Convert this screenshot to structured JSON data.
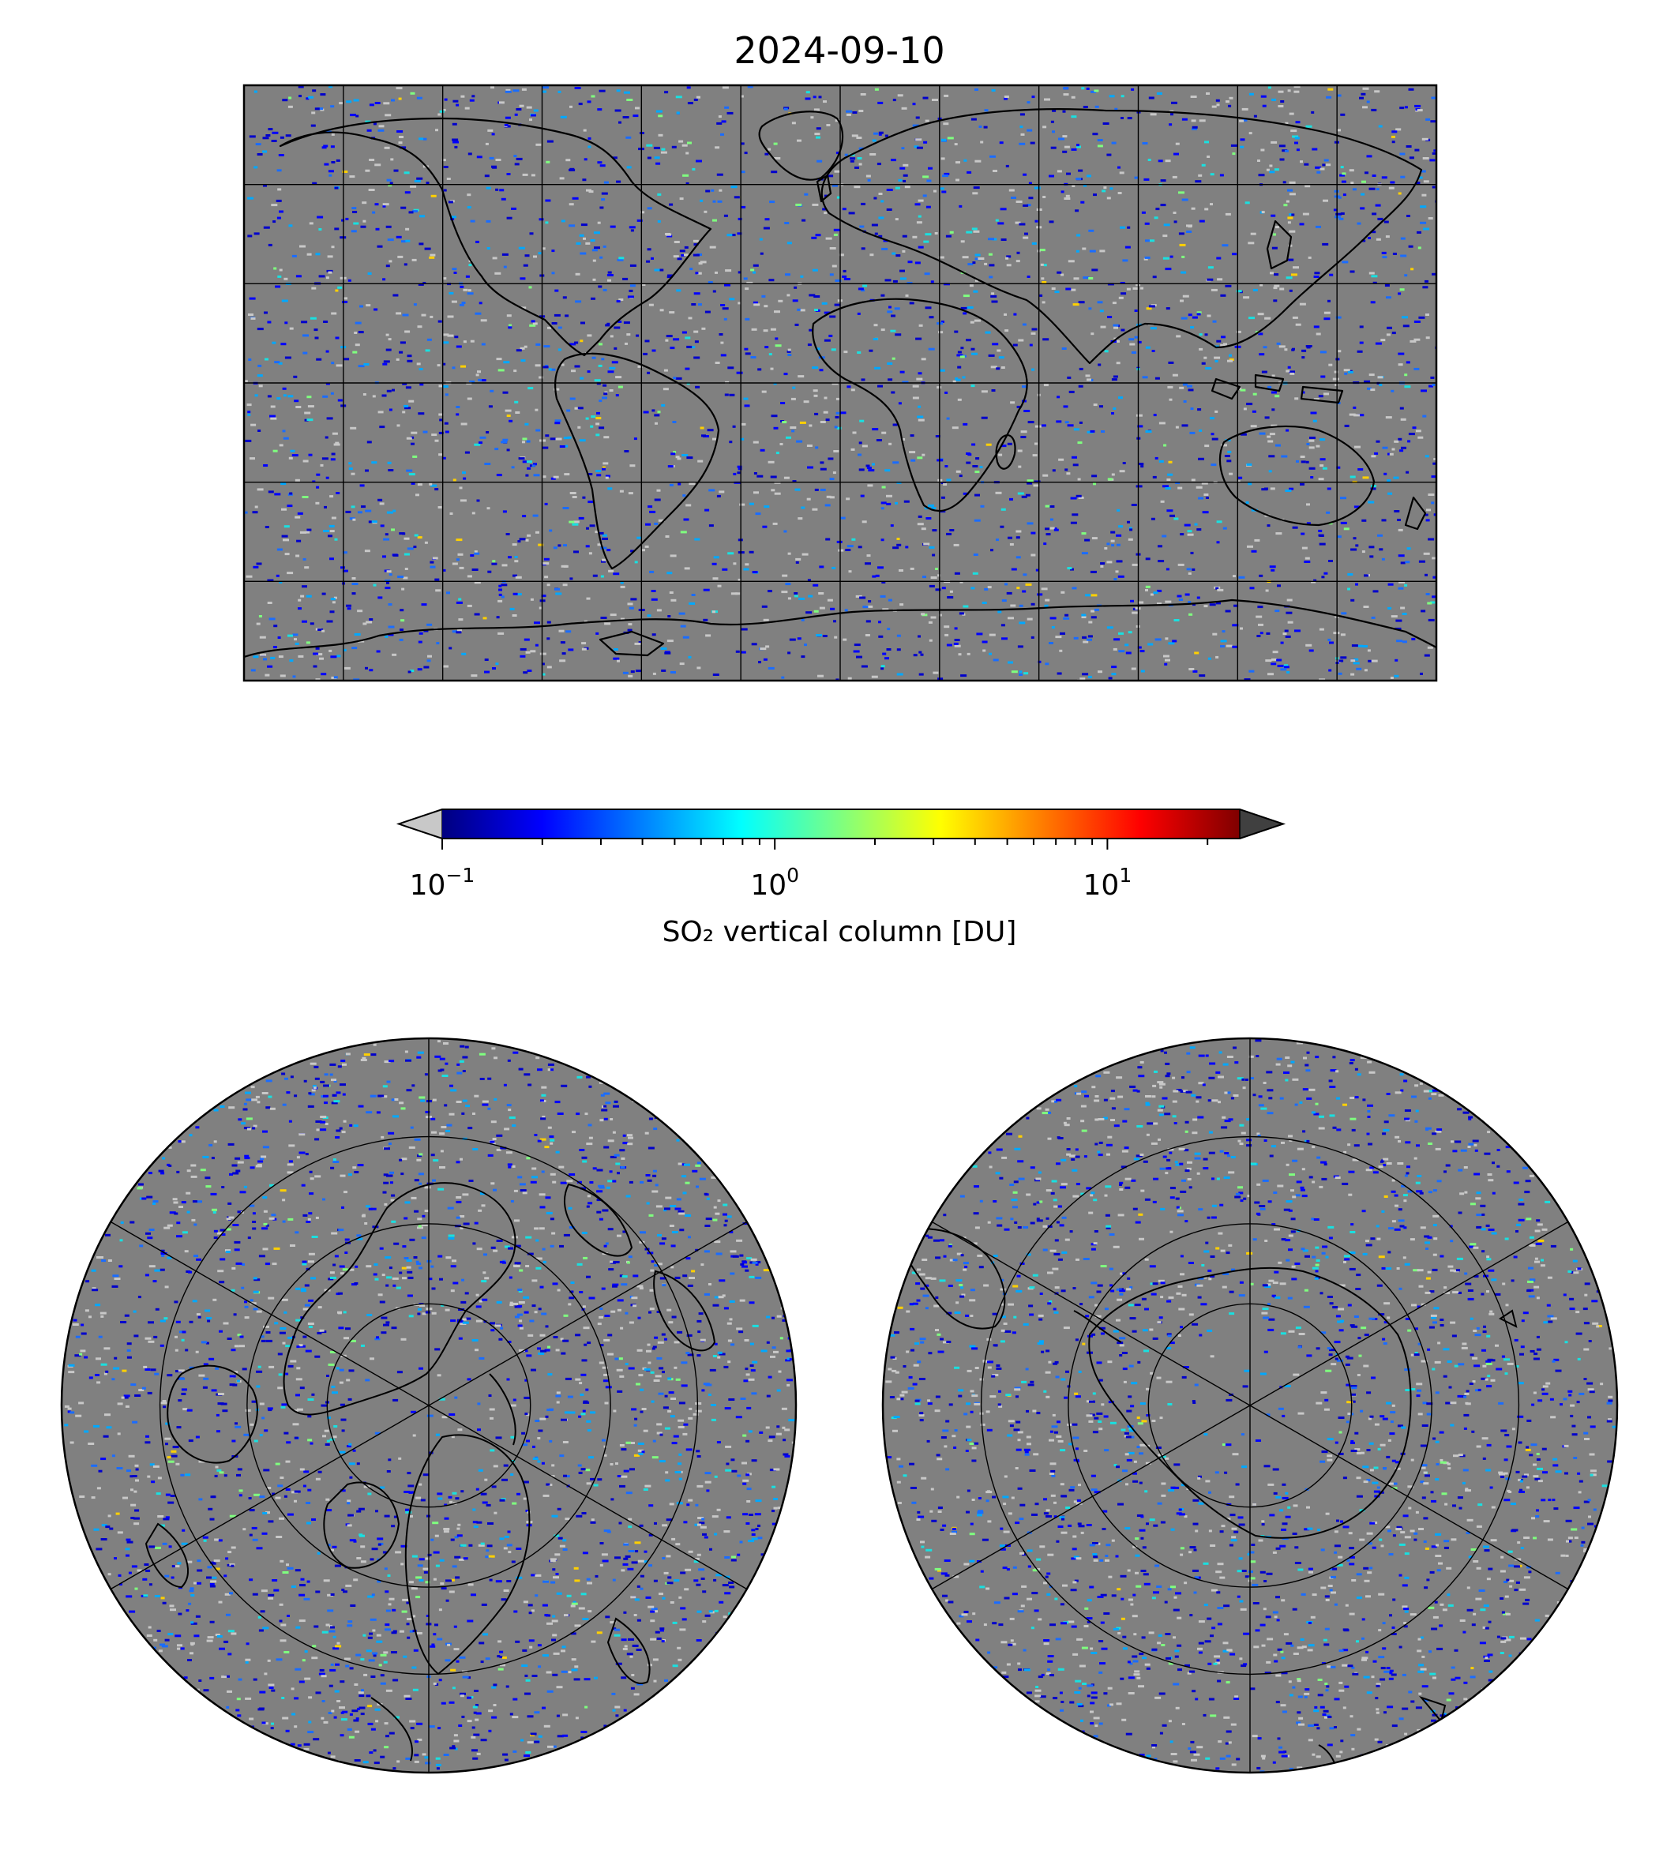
{
  "title": "2024-09-10",
  "colorbar": {
    "label": "SO₂ vertical column [DU]",
    "scale": "log",
    "range": [
      0.1,
      25
    ],
    "colormap": [
      "#00007f",
      "#0000ff",
      "#007fff",
      "#00ffff",
      "#7fff7f",
      "#ffff00",
      "#ff7f00",
      "#ff0000",
      "#7f0000"
    ],
    "under_color": "#c8c8c8",
    "over_color": "#404040",
    "ticks": [
      {
        "value": 0.1,
        "base": "10",
        "exp": "−1"
      },
      {
        "value": 1,
        "base": "10",
        "exp": "0"
      },
      {
        "value": 10,
        "base": "10",
        "exp": "1"
      }
    ]
  },
  "maps": {
    "background_color": "#808080",
    "global": {
      "projection": "plate-carree",
      "lon_range": [
        -180,
        180
      ],
      "lat_range": [
        -90,
        90
      ],
      "gridline_step_lon": 30,
      "gridline_step_lat": 30
    },
    "north_polar": {
      "projection": "north-polar-stereographic",
      "lat_circles": [
        40,
        55,
        70
      ],
      "meridian_step": 60
    },
    "south_polar": {
      "projection": "south-polar-stereographic",
      "lat_circles": [
        -40,
        -55,
        -70
      ],
      "meridian_step": 60
    }
  }
}
